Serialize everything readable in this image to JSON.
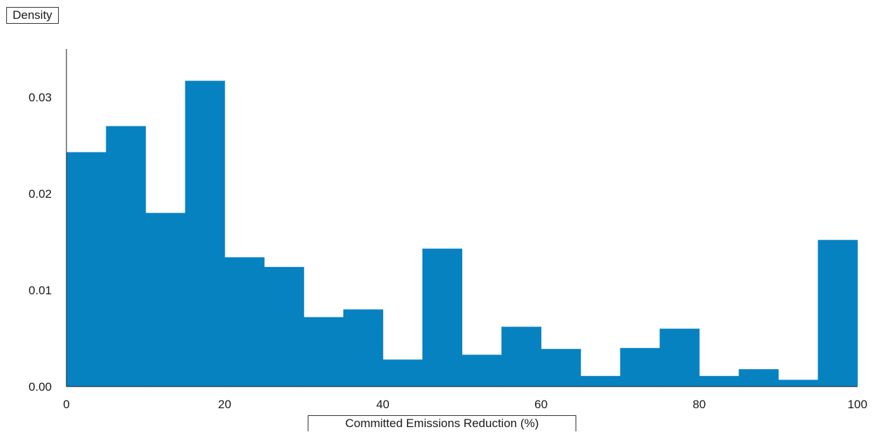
{
  "chart_data": {
    "type": "bar",
    "subtype": "histogram",
    "title": "",
    "xlabel": "Committed Emissions Reduction (%)",
    "ylabel": "Density",
    "bin_edges": [
      0,
      5,
      10,
      15,
      20,
      25,
      30,
      35,
      40,
      45,
      50,
      55,
      60,
      65,
      70,
      75,
      80,
      85,
      90,
      95,
      100
    ],
    "values": [
      0.0243,
      0.027,
      0.018,
      0.0317,
      0.0134,
      0.0124,
      0.0072,
      0.008,
      0.0028,
      0.0143,
      0.0033,
      0.0062,
      0.0039,
      0.0011,
      0.004,
      0.006,
      0.0011,
      0.0018,
      0.0007,
      0.0152
    ],
    "xlim": [
      0,
      100
    ],
    "ylim": [
      0,
      0.035
    ],
    "xticks": [
      0,
      20,
      40,
      60,
      80,
      100
    ],
    "xtick_labels": [
      "0",
      "20",
      "40",
      "60",
      "80",
      "100"
    ],
    "yticks": [
      0,
      0.01,
      0.02,
      0.03
    ],
    "ytick_labels": [
      "0.00",
      "0.01",
      "0.02",
      "0.03"
    ],
    "bar_color": "#0782c1",
    "grid": false,
    "legend": "none"
  }
}
